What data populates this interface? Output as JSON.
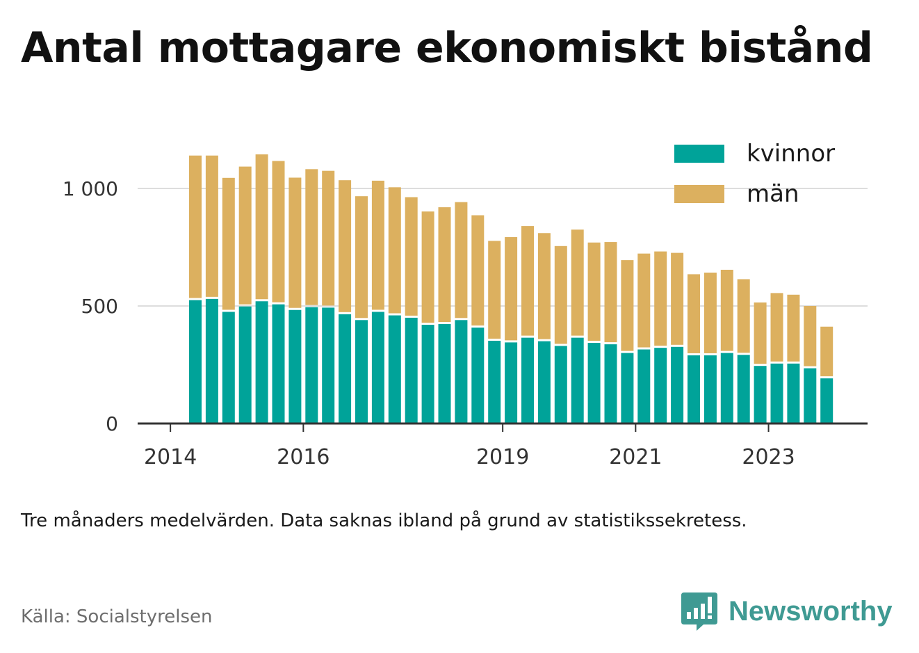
{
  "title": "Antal mottagare ekonomiskt bistånd",
  "note": "Tre månaders medelvärden. Data saknas ibland på grund av statistikssekretess.",
  "source": "Källa: Socialstyrelsen",
  "logo_text": "Newsworthy",
  "colors": {
    "kvinnor": "#00a399",
    "man": "#dcb05f",
    "grid": "#dddddd",
    "axis": "#333333"
  },
  "chart_data": {
    "type": "bar",
    "stacked": true,
    "x_tick_labels": [
      "2014",
      "2016",
      "2019",
      "2021",
      "2023"
    ],
    "y_ticks": [
      0,
      500,
      1000
    ],
    "y_tick_labels": [
      "0",
      "500",
      "1 000"
    ],
    "ylim": [
      0,
      1150
    ],
    "legend_position": "top-right",
    "series": [
      {
        "name": "kvinnor",
        "values": [
          525,
          530,
          475,
          498,
          520,
          507,
          483,
          495,
          493,
          465,
          440,
          475,
          460,
          450,
          420,
          423,
          440,
          408,
          352,
          345,
          365,
          350,
          330,
          365,
          343,
          337,
          300,
          315,
          322,
          326,
          290,
          290,
          300,
          292,
          245,
          255,
          255,
          235,
          192
        ]
      },
      {
        "name": "män",
        "values": [
          615,
          610,
          570,
          595,
          625,
          610,
          563,
          587,
          582,
          570,
          527,
          558,
          545,
          513,
          482,
          497,
          502,
          478,
          425,
          448,
          475,
          460,
          425,
          460,
          427,
          435,
          395,
          408,
          410,
          400,
          345,
          352,
          354,
          322,
          270,
          300,
          293,
          265,
          220
        ]
      }
    ]
  }
}
